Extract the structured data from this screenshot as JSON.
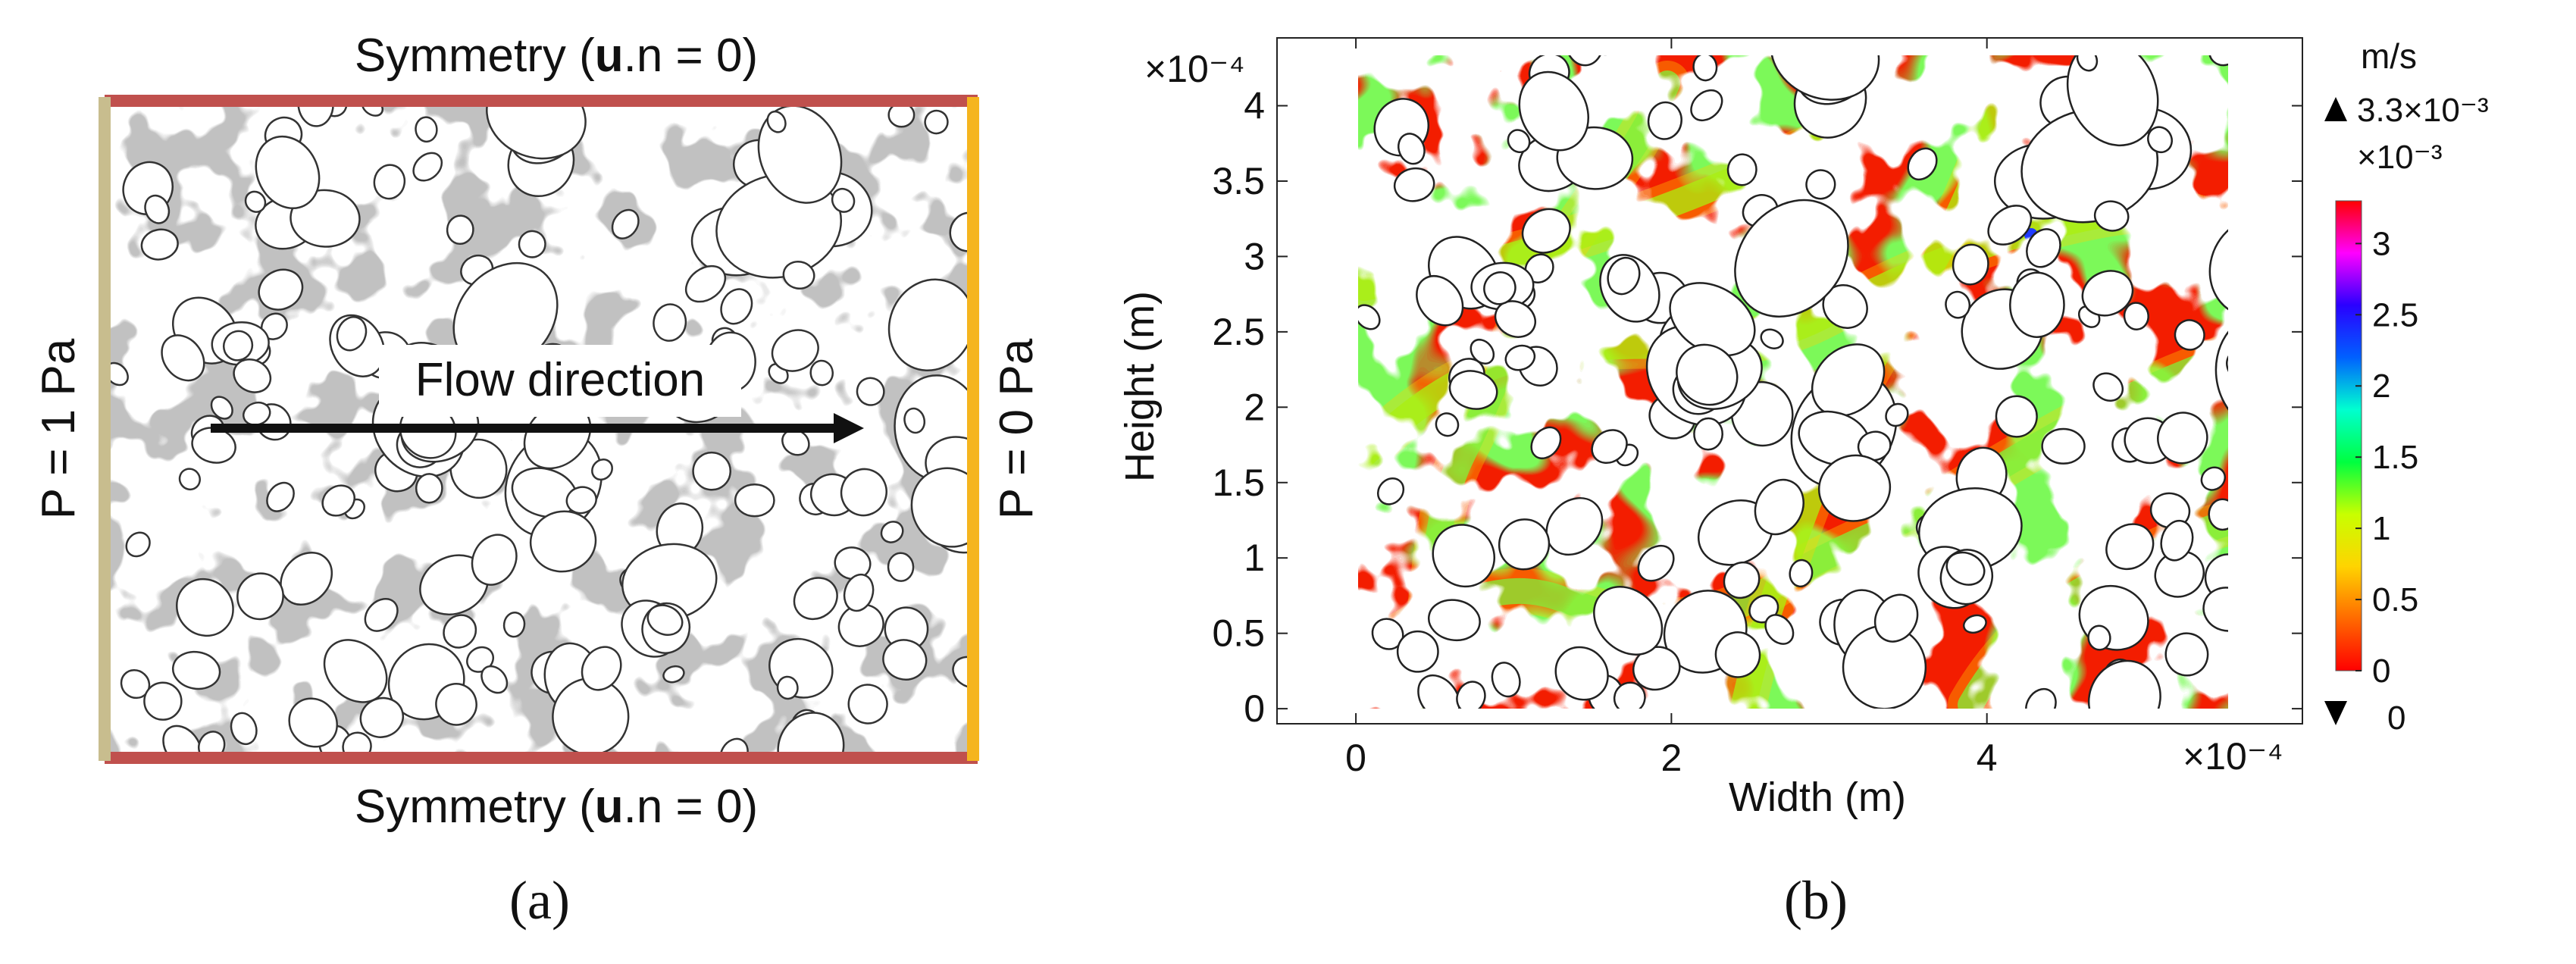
{
  "panel_a": {
    "top_boundary": "Symmetry (u.n = 0)",
    "top_boundary_parts": [
      "Symmetry (",
      "u",
      ".n = 0)"
    ],
    "bottom_boundary": "Symmetry (u.n = 0)",
    "bottom_boundary_parts": [
      "Symmetry (",
      "u",
      ".n = 0)"
    ],
    "left_boundary": "P = 1 Pa",
    "right_boundary": "P = 0 Pa",
    "flow_label": "Flow direction",
    "caption": "(a)",
    "colors": {
      "solid_matrix": "#c1c1c1",
      "pores": "#ffffff",
      "symmetry_edge": "#c0504d",
      "inlet_edge": "#c8bd8e",
      "outlet_edge": "#f5b51e",
      "arrow": "#111111"
    }
  },
  "panel_b": {
    "caption": "(b)",
    "chart_data": {
      "type": "heatmap",
      "title": "",
      "xlabel": "Width (m)",
      "ylabel": "Height (m)",
      "x_multiplier": "×10⁻⁴",
      "y_multiplier": "×10⁻⁴",
      "xlim": [
        -0.5,
        6.0
      ],
      "ylim": [
        -0.1,
        4.45
      ],
      "x_ticks": [
        0,
        2,
        4
      ],
      "x_tick_labels": [
        "0",
        "2",
        "4"
      ],
      "y_ticks": [
        0,
        0.5,
        1,
        1.5,
        2,
        2.5,
        3,
        3.5,
        4
      ],
      "y_tick_labels": [
        "0",
        "0.5",
        "1",
        "1.5",
        "2",
        "2.5",
        "3",
        "3.5",
        "4"
      ],
      "domain_x": [
        0,
        6.0
      ],
      "domain_y": [
        0,
        4.45
      ],
      "grid": false,
      "colorbar": {
        "unit": "m/s",
        "max_label": "3.3×10⁻³",
        "scale_label": "×10⁻³",
        "min_label": "0",
        "ticks": [
          0,
          0.5,
          1,
          1.5,
          2,
          2.5,
          3
        ],
        "tick_labels": [
          "0",
          "0.5",
          "1",
          "1.5",
          "2",
          "2.5",
          "3"
        ],
        "range": [
          0,
          3.3
        ],
        "colors": [
          "#ff0000",
          "#ff6a00",
          "#ffd400",
          "#c8ff00",
          "#00ff40",
          "#00ffd0",
          "#0060ff",
          "#2a00ff",
          "#ff00ff",
          "#ff0000"
        ]
      }
    }
  }
}
